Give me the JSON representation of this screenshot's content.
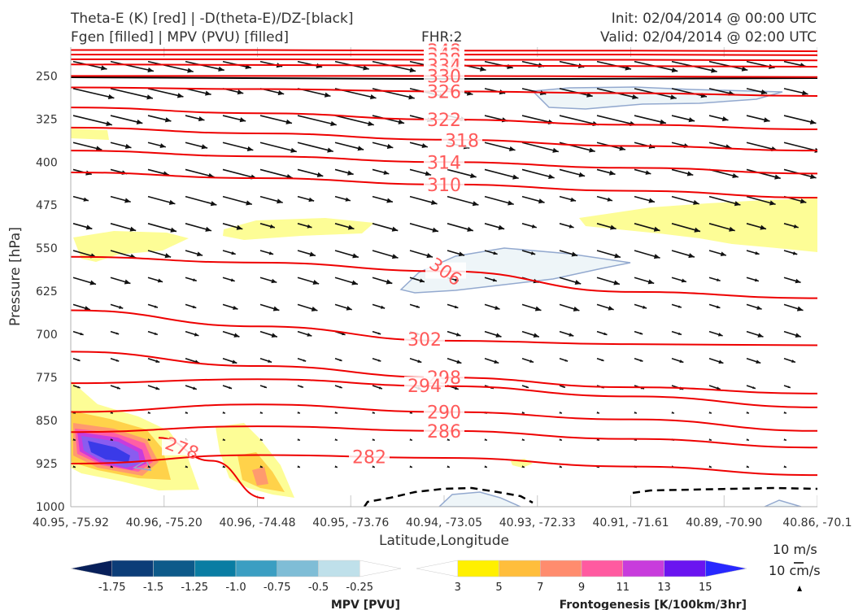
{
  "header": {
    "title_line1": "Theta-E (K) [red] | -D(theta-E)/DZ-[black]",
    "title_line2": "Fgen [filled] | MPV (PVU) [filled]",
    "fhr": "FHR:2",
    "init": "Init: 02/04/2014 @ 00:00 UTC",
    "valid": "Valid: 02/04/2014 @ 02:00 UTC"
  },
  "chart_data": {
    "type": "cross-section",
    "xlabel": "Latitude,Longitude",
    "ylabel": "Pressure [hPa]",
    "ylim": [
      1000,
      200
    ],
    "y_ticks": [
      250,
      325,
      400,
      475,
      550,
      625,
      700,
      775,
      850,
      925,
      1000
    ],
    "x_ticks": [
      "40.95, -75.92",
      "40.96, -75.20",
      "40.96, -74.48",
      "40.95, -73.76",
      "40.94, -73.05",
      "40.93, -72.33",
      "40.91, -71.61",
      "40.89, -70.90",
      "40.86, -70.1"
    ],
    "theta_e_contours": [
      {
        "value": 348,
        "label": "348",
        "p": [
          205,
          205,
          206,
          206,
          207
        ]
      },
      {
        "value": 342,
        "label": "342",
        "p": [
          213,
          213,
          213,
          213,
          214
        ]
      },
      {
        "value": 338,
        "label": "338",
        "p": [
          221,
          221,
          222,
          222,
          223
        ]
      },
      {
        "value": 334,
        "label": "334",
        "p": [
          230,
          231,
          232,
          233,
          234
        ]
      },
      {
        "value": 330,
        "label": "330",
        "p": [
          250,
          250,
          250,
          251,
          252
        ]
      },
      {
        "value": 326,
        "label": "326",
        "p": [
          270,
          273,
          277,
          280,
          285
        ]
      },
      {
        "value": 322,
        "label": "322",
        "p": [
          305,
          315,
          326,
          335,
          343
        ]
      },
      {
        "value": 318,
        "label": "318",
        "p": [
          340,
          350,
          361,
          372,
          380
        ]
      },
      {
        "value": 314,
        "label": "314",
        "p": [
          380,
          390,
          400,
          410,
          420
        ]
      },
      {
        "value": 310,
        "label": "310",
        "p": [
          418,
          428,
          439,
          450,
          462
        ]
      },
      {
        "value": 306,
        "label": "306",
        "p": [
          565,
          575,
          590,
          626,
          637
        ]
      },
      {
        "value": 302,
        "label": "302",
        "p": [
          658,
          686,
          711,
          717,
          719
        ]
      },
      {
        "value": 298,
        "label": "298",
        "p": [
          730,
          755,
          775,
          792,
          803
        ]
      },
      {
        "value": 294,
        "label": "294",
        "p": [
          785,
          778,
          790,
          808,
          827
        ]
      },
      {
        "value": 290,
        "label": "290",
        "p": [
          835,
          822,
          835,
          848,
          868
        ]
      },
      {
        "value": 286,
        "label": "286",
        "p": [
          870,
          860,
          868,
          882,
          897
        ]
      },
      {
        "value": 282,
        "label": "282",
        "p": [
          925,
          910,
          915,
          930,
          945
        ]
      },
      {
        "value": 278,
        "label": "278",
        "p": [
          880,
          920,
          985
        ]
      }
    ],
    "colorbar_mpv": {
      "title": "MPV [PVU]",
      "ticks": [
        "-1.75",
        "-1.5",
        "-1.25",
        "-1.0",
        "-0.75",
        "-0.5",
        "-0.25"
      ],
      "colors": [
        "#08205a",
        "#0c3d78",
        "#0d5a8a",
        "#0a7da3",
        "#3b9ec2",
        "#7fbdd6",
        "#bfe0ea",
        "#ffffff"
      ]
    },
    "colorbar_fgen": {
      "title": "Frontogenesis [K/100km/3hr]",
      "ticks": [
        "3",
        "5",
        "7",
        "9",
        "11",
        "13",
        "15"
      ],
      "colors": [
        "#ffffff",
        "#fff000",
        "#ffbe3c",
        "#ff8c6e",
        "#ff5aa0",
        "#c83cdc",
        "#6a14f0",
        "#2828ff"
      ]
    },
    "wind_reference": [
      "10 m/s",
      "10 cm/s"
    ]
  }
}
